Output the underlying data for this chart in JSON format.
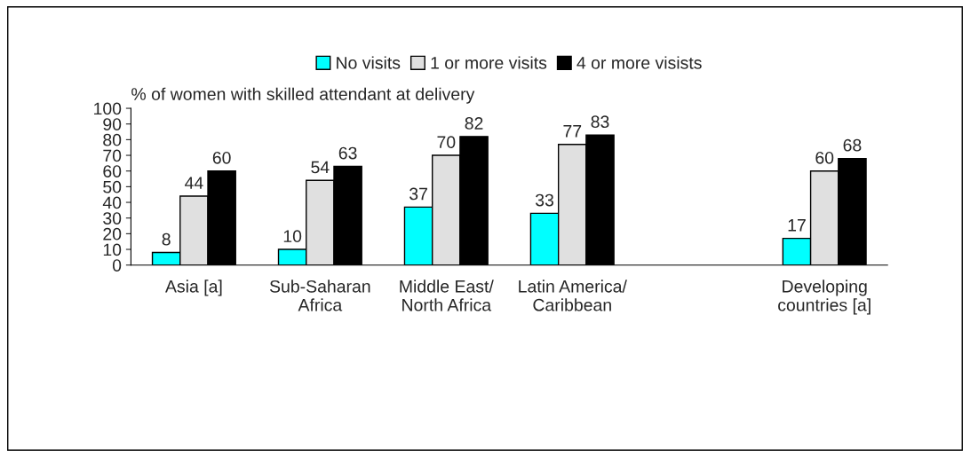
{
  "chart_data": {
    "type": "bar",
    "ylabel": "% of women with skilled attendant at delivery",
    "categories": [
      "Asia [a]",
      "Sub-Saharan\nAfrica",
      "Middle East/\nNorth Africa",
      "Latin America/\nCaribbean",
      null,
      "Developing\ncountries [a]"
    ],
    "series": [
      {
        "name": "No visits",
        "color": "#00ffff",
        "values": [
          8,
          10,
          37,
          33,
          null,
          17
        ]
      },
      {
        "name": "1 or more visits",
        "color": "#e0e0e0",
        "values": [
          44,
          54,
          70,
          77,
          null,
          60
        ]
      },
      {
        "name": "4 or more visists",
        "color": "#000000",
        "values": [
          60,
          63,
          82,
          83,
          null,
          68
        ]
      }
    ],
    "ylim": [
      0,
      100
    ],
    "yticks": [
      0,
      10,
      20,
      30,
      40,
      50,
      60,
      70,
      80,
      90,
      100
    ],
    "grid": false,
    "legend": "top",
    "data_labels": true
  }
}
